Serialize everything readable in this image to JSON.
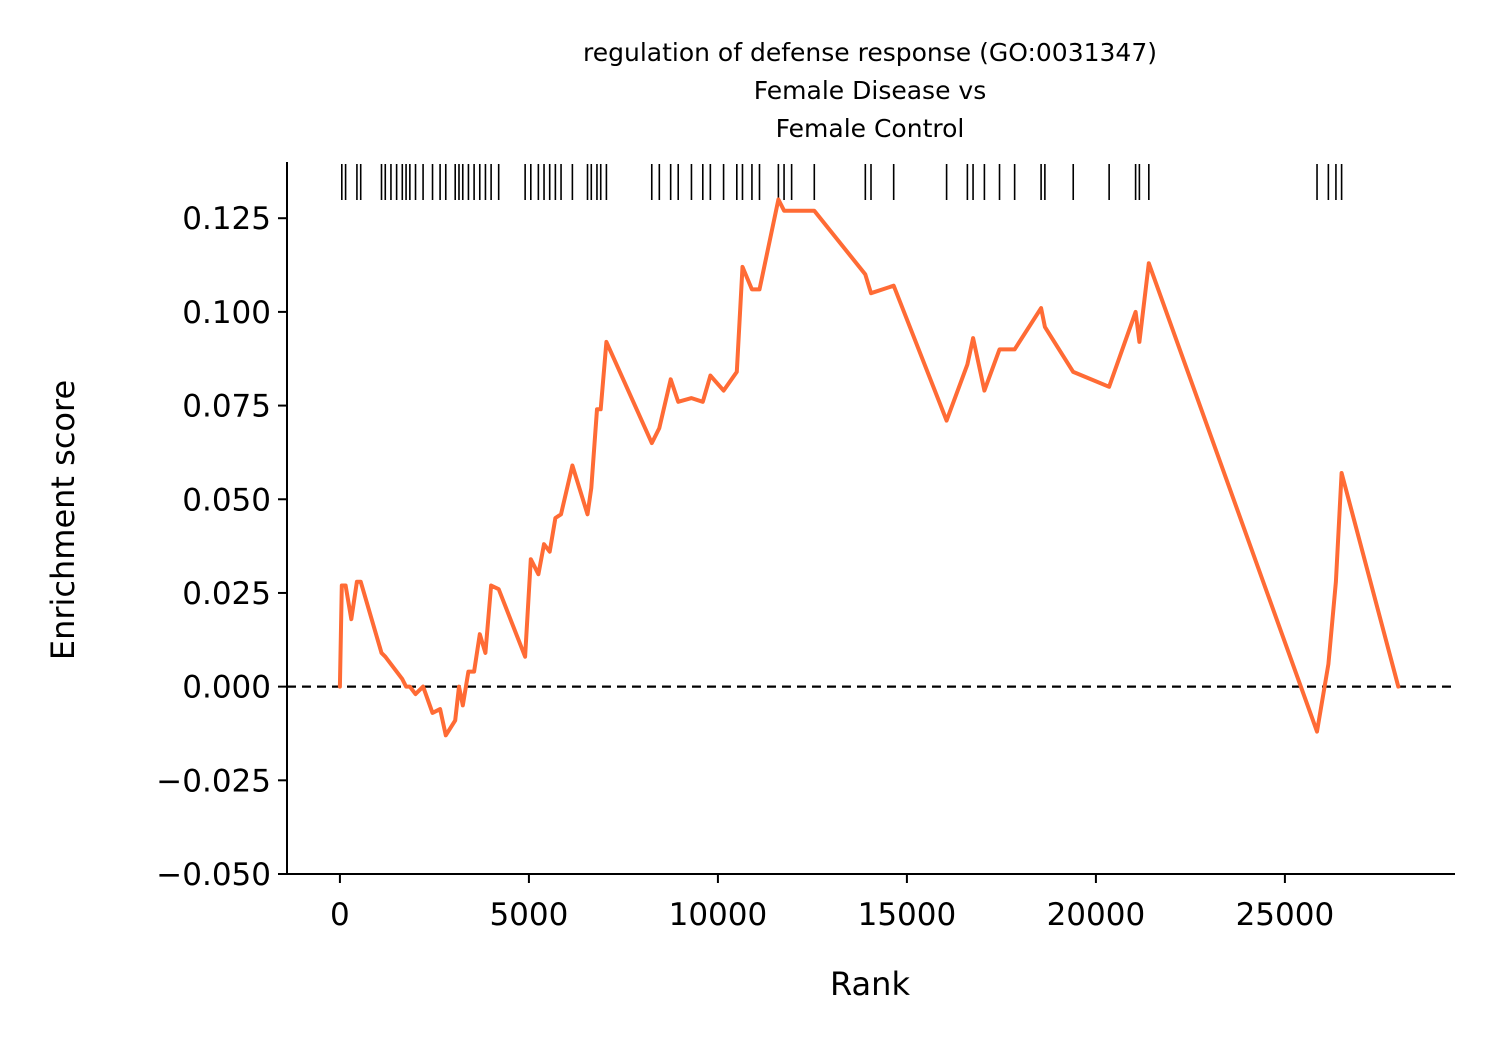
{
  "chart_data": {
    "type": "line",
    "title": [
      "regulation of defense response (GO:0031347)",
      "Female Disease vs",
      "Female Control"
    ],
    "xlabel": "Rank",
    "ylabel": "Enrichment score",
    "xlim": [
      -1400,
      29500
    ],
    "ylim": [
      -0.05,
      0.14
    ],
    "xticks": [
      0,
      5000,
      10000,
      15000,
      20000,
      25000
    ],
    "xtick_labels": [
      "0",
      "5000",
      "10000",
      "15000",
      "20000",
      "25000"
    ],
    "yticks": [
      -0.05,
      -0.025,
      0.0,
      0.025,
      0.05,
      0.075,
      0.1,
      0.125
    ],
    "ytick_labels": [
      "−0.050",
      "−0.025",
      "0.000",
      "0.025",
      "0.050",
      "0.075",
      "0.100",
      "0.125"
    ],
    "baseline": 0.0,
    "grid": false,
    "line_color": "#ff6b35",
    "hit_color": "#000000",
    "hits": [
      50,
      150,
      450,
      550,
      1100,
      1200,
      1350,
      1500,
      1650,
      1750,
      1850,
      2000,
      2200,
      2450,
      2650,
      2800,
      3050,
      3150,
      3250,
      3400,
      3550,
      3700,
      3850,
      4000,
      4200,
      4900,
      5050,
      5250,
      5400,
      5550,
      5700,
      5850,
      6150,
      6550,
      6650,
      6800,
      6900,
      7050,
      8250,
      8450,
      8750,
      8950,
      9300,
      9600,
      9800,
      10150,
      10500,
      10650,
      10900,
      11100,
      11600,
      11750,
      11950,
      12550,
      13900,
      14050,
      14650,
      16050,
      16600,
      16750,
      17050,
      17450,
      17850,
      18550,
      18650,
      19400,
      20350,
      21050,
      21150,
      21400,
      25850,
      26150,
      26350,
      26500
    ],
    "series": [
      {
        "x": [
          0,
          50,
          150,
          300,
          450,
          550,
          1100,
          1200,
          1350,
          1500,
          1650,
          1750,
          1850,
          2000,
          2200,
          2450,
          2650,
          2800,
          3050,
          3150,
          3250,
          3400,
          3550,
          3700,
          3850,
          4000,
          4200,
          4900,
          5050,
          5250,
          5400,
          5550,
          5700,
          5850,
          6150,
          6550,
          6650,
          6800,
          6900,
          7050,
          8250,
          8450,
          8750,
          8950,
          9300,
          9600,
          9800,
          10150,
          10500,
          10650,
          10900,
          11100,
          11600,
          11750,
          11950,
          12550,
          13900,
          14050,
          14650,
          16050,
          16600,
          16750,
          17050,
          17450,
          17850,
          18550,
          18650,
          19400,
          20350,
          21050,
          21150,
          21400,
          25850,
          26150,
          26350,
          26500,
          28000
        ],
        "y": [
          0.0,
          0.027,
          0.027,
          0.018,
          0.028,
          0.028,
          0.009,
          0.008,
          0.006,
          0.004,
          0.002,
          0.0,
          0.0,
          -0.002,
          0.0,
          -0.007,
          -0.006,
          -0.013,
          -0.009,
          0.0,
          -0.005,
          0.004,
          0.004,
          0.014,
          0.009,
          0.027,
          0.026,
          0.008,
          0.034,
          0.03,
          0.038,
          0.036,
          0.045,
          0.046,
          0.059,
          0.046,
          0.053,
          0.074,
          0.074,
          0.092,
          0.065,
          0.069,
          0.082,
          0.076,
          0.077,
          0.076,
          0.083,
          0.079,
          0.084,
          0.112,
          0.106,
          0.106,
          0.13,
          0.127,
          0.127,
          0.127,
          0.11,
          0.105,
          0.107,
          0.071,
          0.086,
          0.093,
          0.079,
          0.09,
          0.09,
          0.101,
          0.096,
          0.084,
          0.08,
          0.1,
          0.092,
          0.113,
          -0.012,
          0.006,
          0.028,
          0.057,
          0.0
        ]
      }
    ]
  }
}
